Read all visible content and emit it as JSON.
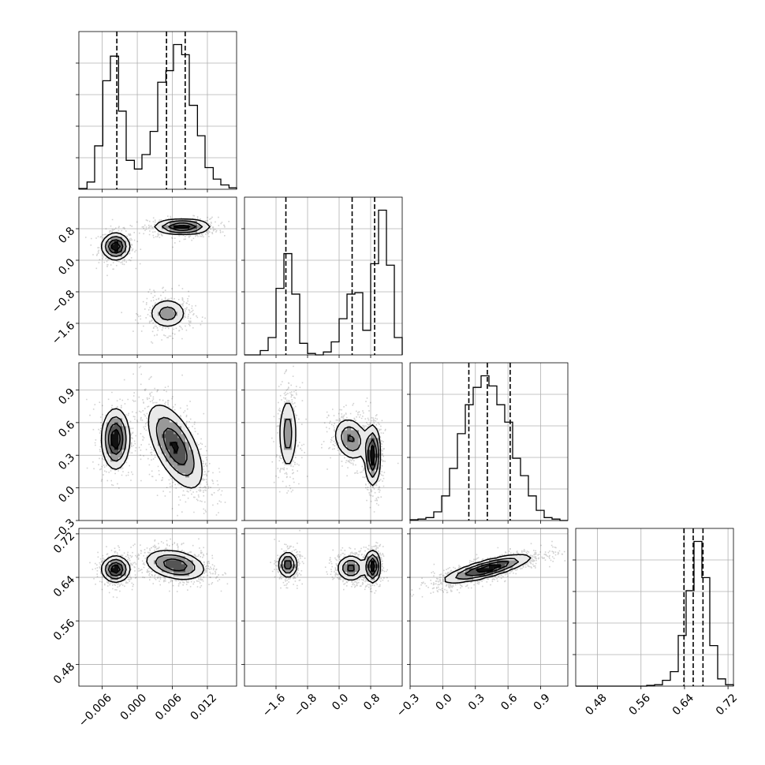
{
  "chart_data": {
    "type": "corner",
    "grid": true,
    "parameters": [
      {
        "range": [
          -0.01,
          0.017
        ],
        "ticks": [
          -0.006,
          0.0,
          0.006,
          0.012
        ],
        "tick_labels": [
          "−0.006",
          "0.000",
          "0.006",
          "0.012"
        ],
        "quantiles": [
          -0.0035,
          0.005,
          0.0082
        ],
        "histogram": {
          "edges": [
            -0.01,
            -0.0086,
            -0.0073,
            -0.0059,
            -0.0046,
            -0.0032,
            -0.0019,
            -0.0005,
            0.0008,
            0.0022,
            0.0035,
            0.0049,
            0.0062,
            0.0076,
            0.0089,
            0.0103,
            0.0116,
            0.013,
            0.0143,
            0.0157,
            0.017
          ],
          "counts": [
            0.5,
            5,
            30,
            75,
            92,
            54,
            20,
            14,
            24,
            40,
            74,
            82,
            100,
            93,
            58,
            37,
            15,
            7,
            3,
            1
          ]
        }
      },
      {
        "range": [
          -2.4,
          1.6
        ],
        "ticks": [
          -1.6,
          -0.8,
          0.0,
          0.8
        ],
        "tick_labels": [
          "−1.6",
          "−0.8",
          "0.0",
          "0.8"
        ],
        "quantiles": [
          -1.35,
          0.33,
          0.9
        ],
        "histogram": {
          "edges": [
            -2.4,
            -2.2,
            -2.0,
            -1.8,
            -1.6,
            -1.4,
            -1.2,
            -1.0,
            -0.8,
            -0.6,
            -0.4,
            -0.2,
            0.0,
            0.2,
            0.4,
            0.6,
            0.8,
            1.0,
            1.2,
            1.4,
            1.6
          ],
          "counts": [
            0,
            0,
            3,
            12,
            46,
            70,
            42,
            8,
            1,
            0,
            2,
            9,
            25,
            42,
            43,
            17,
            63,
            100,
            62,
            12
          ]
        }
      },
      {
        "range": [
          -0.3,
          1.15
        ],
        "ticks": [
          -0.3,
          0.0,
          0.3,
          0.6,
          0.9
        ],
        "tick_labels": [
          "−0.3",
          "0.0",
          "0.3",
          "0.6",
          "0.9"
        ],
        "quantiles": [
          0.24,
          0.41,
          0.62
        ],
        "histogram": {
          "edges": [
            -0.3,
            -0.2275,
            -0.155,
            -0.0825,
            -0.01,
            0.0625,
            0.135,
            0.2075,
            0.28,
            0.3525,
            0.425,
            0.4975,
            0.57,
            0.6425,
            0.715,
            0.7875,
            0.86,
            0.9325,
            1.005,
            1.0775,
            1.15
          ],
          "counts": [
            0.5,
            1,
            2,
            6,
            17,
            36,
            60,
            80,
            92,
            100,
            93,
            80,
            68,
            43,
            31,
            17,
            7,
            2,
            1,
            0
          ]
        }
      },
      {
        "range": [
          0.44,
          0.73
        ],
        "ticks": [
          0.48,
          0.56,
          0.64,
          0.72
        ],
        "tick_labels": [
          "0.48",
          "0.56",
          "0.64",
          "0.72"
        ],
        "quantiles": [
          0.639,
          0.656,
          0.674
        ],
        "histogram": {
          "edges": [
            0.44,
            0.4545,
            0.469,
            0.4835,
            0.498,
            0.5125,
            0.527,
            0.5415,
            0.556,
            0.5705,
            0.585,
            0.5995,
            0.614,
            0.6285,
            0.643,
            0.6575,
            0.672,
            0.6865,
            0.701,
            0.7155,
            0.73
          ],
          "counts": [
            0,
            0,
            0,
            0,
            0,
            0,
            0,
            0,
            0,
            0.5,
            1,
            4,
            10,
            35,
            66,
            100,
            75,
            28,
            5,
            1
          ]
        }
      }
    ],
    "joint": {
      "1-0": {
        "modes": [
          {
            "cx": -0.0037,
            "cy": 0.35,
            "sx": 0.0012,
            "sy": 0.17,
            "rho": 0.0,
            "w": 0.34
          },
          {
            "cx": 0.0077,
            "cy": 0.85,
            "sx": 0.0024,
            "sy": 0.1,
            "rho": 0.0,
            "w": 0.38
          },
          {
            "cx": 0.0052,
            "cy": -1.35,
            "sx": 0.0017,
            "sy": 0.2,
            "rho": 0.0,
            "w": 0.28
          }
        ]
      },
      "2-0": {
        "modes": [
          {
            "cx": -0.0037,
            "cy": 0.45,
            "sx": 0.0012,
            "sy": 0.14,
            "rho": 0.0,
            "w": 0.34
          },
          {
            "cx": 0.0065,
            "cy": 0.38,
            "sx": 0.0024,
            "sy": 0.2,
            "rho": -0.6,
            "w": 0.66
          }
        ]
      },
      "2-1": {
        "modes": [
          {
            "cx": -1.3,
            "cy": 0.5,
            "sx": 0.12,
            "sy": 0.18,
            "rho": 0.0,
            "w": 0.28
          },
          {
            "cx": 0.3,
            "cy": 0.45,
            "sx": 0.22,
            "sy": 0.1,
            "rho": -0.2,
            "w": 0.36
          },
          {
            "cx": 0.85,
            "cy": 0.3,
            "sx": 0.1,
            "sy": 0.14,
            "rho": 0.0,
            "w": 0.36
          }
        ]
      },
      "3-0": {
        "modes": [
          {
            "cx": -0.0037,
            "cy": 0.655,
            "sx": 0.0012,
            "sy": 0.012,
            "rho": 0.0,
            "w": 0.34
          },
          {
            "cx": 0.0065,
            "cy": 0.663,
            "sx": 0.0026,
            "sy": 0.014,
            "rho": -0.3,
            "w": 0.66
          }
        ]
      },
      "3-1": {
        "modes": [
          {
            "cx": -1.3,
            "cy": 0.663,
            "sx": 0.12,
            "sy": 0.012,
            "rho": 0.0,
            "w": 0.28
          },
          {
            "cx": 0.3,
            "cy": 0.657,
            "sx": 0.18,
            "sy": 0.012,
            "rho": 0.0,
            "w": 0.36
          },
          {
            "cx": 0.85,
            "cy": 0.66,
            "sx": 0.1,
            "sy": 0.015,
            "rho": 0.0,
            "w": 0.36
          }
        ]
      },
      "3-2": {
        "modes": [
          {
            "cx": 0.41,
            "cy": 0.656,
            "sx": 0.2,
            "sy": 0.013,
            "rho": 0.8,
            "w": 1.0
          }
        ]
      }
    }
  }
}
